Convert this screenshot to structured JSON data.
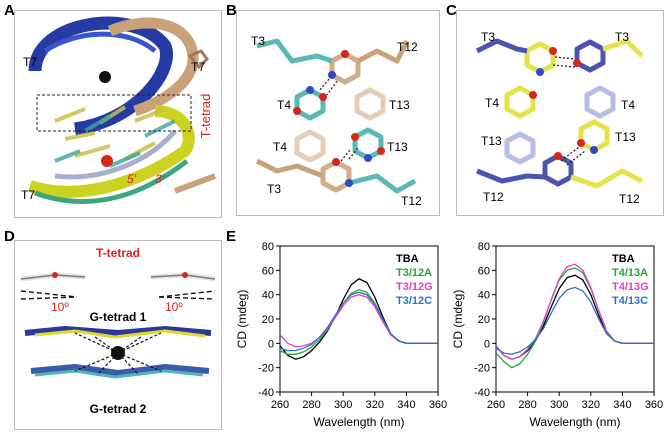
{
  "panels": {
    "A": {
      "letter": "A",
      "labels": {
        "t7_left": "T7",
        "t7_right": "T7",
        "t7_bottom": "T7",
        "tetrad": "T-tetrad",
        "five": "5′",
        "three": "3′"
      }
    },
    "B": {
      "letter": "B",
      "labels": {
        "t3_tl": "T3",
        "t12_tr": "T12",
        "t4_l": "T4",
        "t13_r": "T13",
        "t4_l2": "T4",
        "t13_r2": "T13",
        "t3_bl": "T3",
        "t12_br": "T12"
      }
    },
    "C": {
      "letter": "C",
      "labels": {
        "t3_tl": "T3",
        "t3_tr": "T3",
        "t4_l": "T4",
        "t4_r": "T4",
        "t13_l": "T13",
        "t13_r": "T13",
        "t12_bl": "T12",
        "t12_br": "T12"
      }
    },
    "D": {
      "letter": "D",
      "labels": {
        "tetrad": "T-tetrad",
        "angle_left": "10º",
        "angle_right": "10º",
        "g1": "G-tetrad 1",
        "g2": "G-tetrad 2"
      }
    },
    "E": {
      "letter": "E"
    }
  },
  "colors": {
    "red_label": "#e0211f",
    "tba": "#000000",
    "series_a": "#27a737",
    "series_g": "#e83ec8",
    "series_c": "#2f73c5"
  },
  "chart_data": [
    {
      "type": "line",
      "xlabel": "Wavelength (nm)",
      "ylabel": "CD (mdeg)",
      "xlim": [
        260,
        360
      ],
      "ylim": [
        -40,
        80
      ],
      "xticks": [
        260,
        280,
        300,
        320,
        340,
        360
      ],
      "yticks": [
        -40,
        -20,
        0,
        20,
        40,
        60,
        80
      ],
      "legend_position": "top-right",
      "x": [
        260,
        265,
        270,
        275,
        280,
        285,
        290,
        295,
        300,
        305,
        310,
        315,
        320,
        325,
        330,
        335,
        340,
        345,
        350,
        355,
        360
      ],
      "series": [
        {
          "name": "TBA",
          "color": "#000000",
          "values": [
            -2,
            -10,
            -13,
            -11,
            -6,
            1,
            10,
            22,
            36,
            48,
            53,
            50,
            38,
            22,
            8,
            2,
            0,
            0,
            0,
            0,
            0
          ]
        },
        {
          "name": "T3/12A",
          "color": "#27a737",
          "values": [
            -6,
            -9,
            -9,
            -7,
            -3,
            3,
            11,
            22,
            33,
            41,
            44,
            42,
            33,
            20,
            8,
            2,
            0,
            0,
            0,
            0,
            0
          ]
        },
        {
          "name": "T3/12G",
          "color": "#e83ec8",
          "values": [
            7,
            0,
            -3,
            -2,
            0,
            5,
            12,
            21,
            31,
            38,
            40,
            38,
            30,
            18,
            7,
            2,
            0,
            0,
            0,
            0,
            0
          ]
        },
        {
          "name": "T3/12C",
          "color": "#2f73c5",
          "values": [
            -4,
            -6,
            -6,
            -4,
            -1,
            5,
            13,
            23,
            33,
            40,
            42,
            40,
            32,
            20,
            8,
            2,
            0,
            0,
            0,
            0,
            0
          ]
        }
      ]
    },
    {
      "type": "line",
      "xlabel": "Wavelength (nm)",
      "ylabel": "CD (mdeg)",
      "xlim": [
        260,
        360
      ],
      "ylim": [
        -40,
        80
      ],
      "xticks": [
        260,
        280,
        300,
        320,
        340,
        360
      ],
      "yticks": [
        -40,
        -20,
        0,
        20,
        40,
        60,
        80
      ],
      "legend_position": "top-right",
      "x": [
        260,
        265,
        270,
        275,
        280,
        285,
        290,
        295,
        300,
        305,
        310,
        315,
        320,
        325,
        330,
        335,
        340,
        345,
        350,
        355,
        360
      ],
      "series": [
        {
          "name": "TBA",
          "color": "#000000",
          "values": [
            -2,
            -10,
            -13,
            -11,
            -6,
            2,
            14,
            30,
            45,
            54,
            56,
            52,
            40,
            23,
            8,
            2,
            0,
            0,
            0,
            0,
            0
          ]
        },
        {
          "name": "T4/13A",
          "color": "#27a737",
          "values": [
            -8,
            -15,
            -20,
            -17,
            -9,
            2,
            17,
            36,
            52,
            60,
            62,
            58,
            45,
            27,
            10,
            2,
            0,
            0,
            0,
            0,
            0
          ]
        },
        {
          "name": "T4/13G",
          "color": "#e83ec8",
          "values": [
            -2,
            -10,
            -13,
            -11,
            -5,
            4,
            18,
            36,
            53,
            63,
            65,
            60,
            46,
            27,
            10,
            2,
            0,
            0,
            0,
            0,
            0
          ]
        },
        {
          "name": "T4/13C",
          "color": "#2f73c5",
          "values": [
            -4,
            -8,
            -9,
            -7,
            -3,
            3,
            12,
            25,
            37,
            44,
            46,
            43,
            34,
            20,
            8,
            2,
            0,
            0,
            0,
            0,
            0
          ]
        }
      ]
    }
  ]
}
